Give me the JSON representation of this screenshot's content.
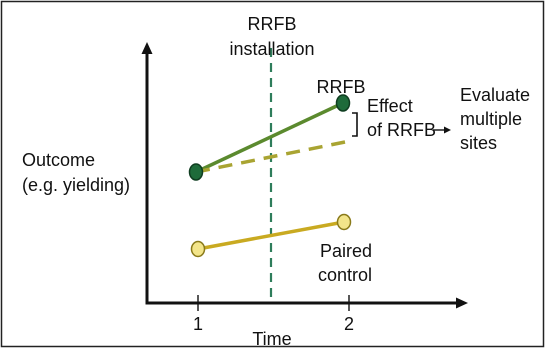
{
  "labels": {
    "installation_line1": "RRFB",
    "installation_line2": "installation",
    "treated_series": "RRFB",
    "effect_line1": "Effect",
    "effect_line2": "of RRFB",
    "evaluate_line1": "Evaluate",
    "evaluate_line2": "multiple",
    "evaluate_line3": "sites",
    "y_axis_line1": "Outcome",
    "y_axis_line2": "(e.g. yielding)",
    "control_line1": "Paired",
    "control_line2": "control",
    "x_axis_label": "Time",
    "x_tick_1": "1",
    "x_tick_2": "2"
  },
  "colors": {
    "treated_line": "#5b8a2e",
    "treated_dashed": "#a9a432",
    "treated_marker": "#1e6b3a",
    "control_line": "#c9aa21",
    "control_marker": "#f3e58a",
    "installation_line": "#2e7d5b",
    "axis": "#111111",
    "border": "#222222"
  }
}
